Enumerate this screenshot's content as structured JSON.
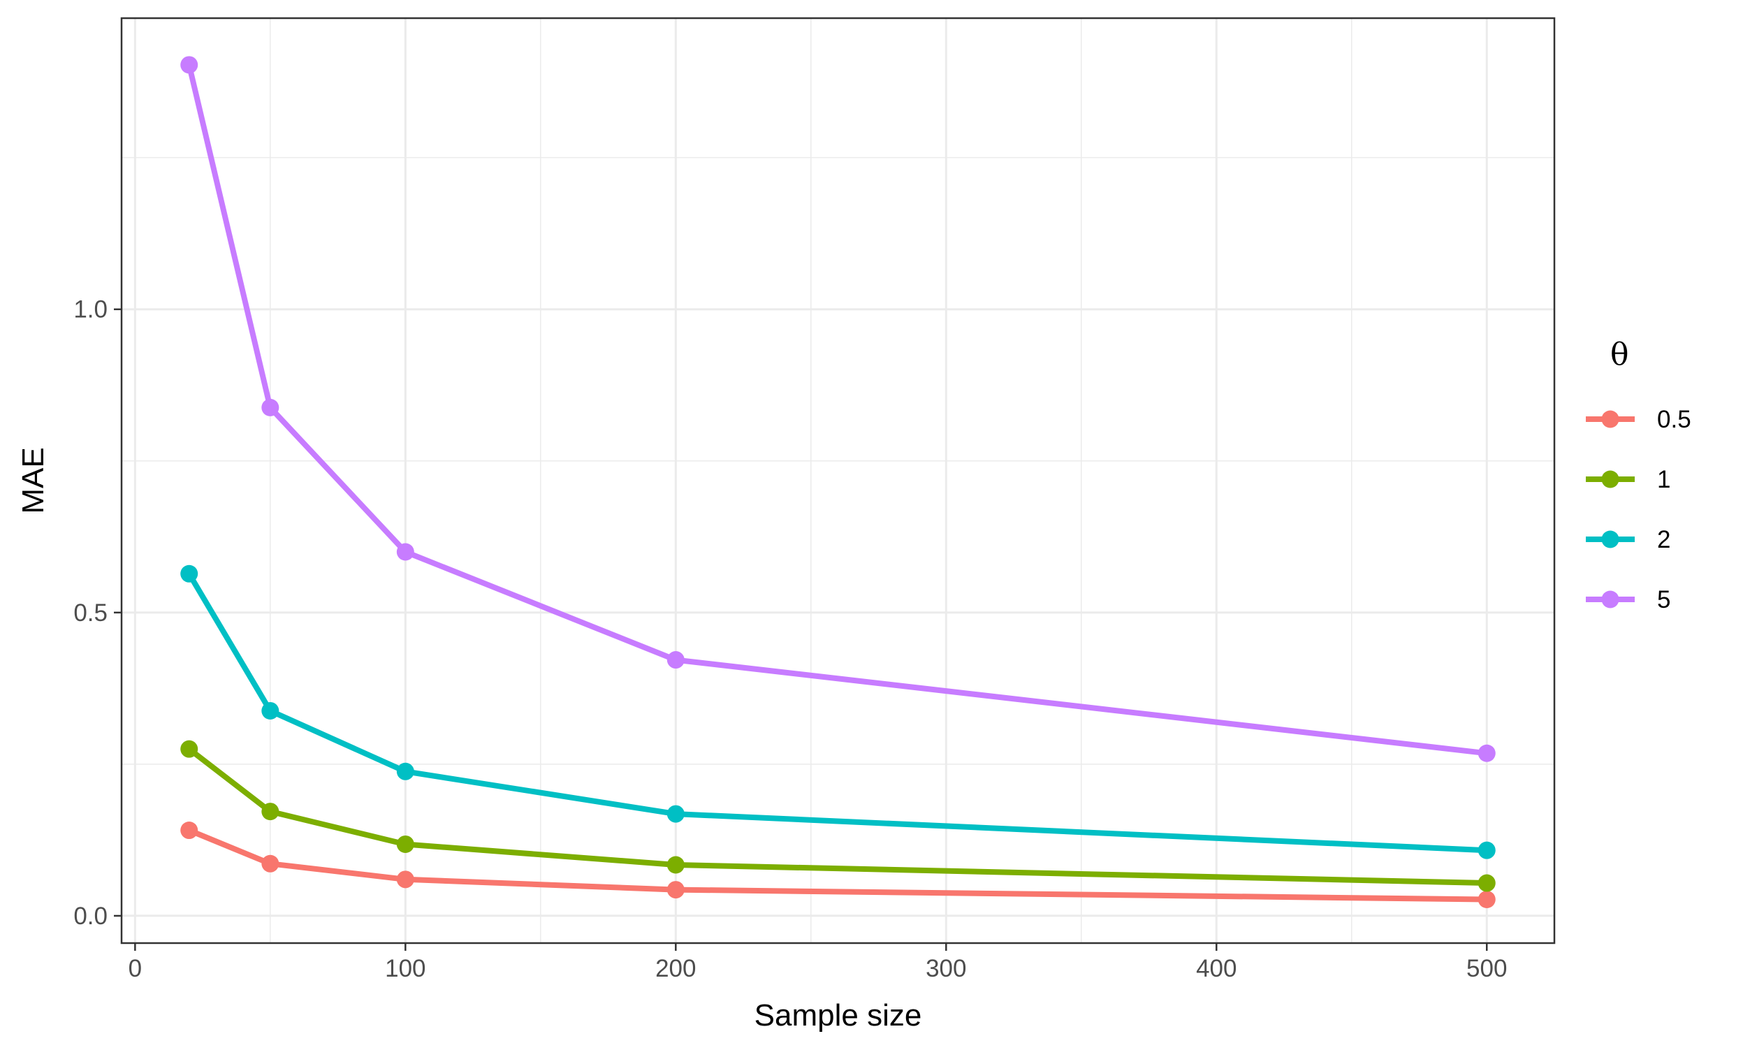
{
  "chart_data": {
    "type": "line",
    "xlabel": "Sample size",
    "ylabel": "MAE",
    "xlim": [
      -5,
      525
    ],
    "ylim": [
      -0.045,
      1.48
    ],
    "x_ticks": [
      0,
      100,
      200,
      300,
      400,
      500
    ],
    "x_tick_labels": [
      "0",
      "100",
      "200",
      "300",
      "400",
      "500"
    ],
    "x_minor_ticks": [
      50,
      150,
      250,
      350,
      450
    ],
    "y_ticks": [
      0.0,
      0.5,
      1.0
    ],
    "y_tick_labels": [
      "0.0",
      "0.5",
      "1.0"
    ],
    "y_minor_ticks": [
      0.25,
      0.75,
      1.25
    ],
    "grid": true,
    "legend": {
      "title": "θ",
      "placement": "right"
    },
    "x": [
      20,
      50,
      100,
      200,
      500
    ],
    "series": [
      {
        "name": "0.5",
        "color": "#F8766D",
        "values": [
          0.141,
          0.086,
          0.06,
          0.043,
          0.027
        ]
      },
      {
        "name": "1",
        "color": "#7CAE00",
        "values": [
          0.275,
          0.172,
          0.118,
          0.084,
          0.054
        ]
      },
      {
        "name": "2",
        "color": "#00BFC4",
        "values": [
          0.564,
          0.338,
          0.238,
          0.168,
          0.108
        ]
      },
      {
        "name": "5",
        "color": "#C77CFF",
        "values": [
          1.403,
          0.838,
          0.6,
          0.422,
          0.268
        ]
      }
    ]
  }
}
